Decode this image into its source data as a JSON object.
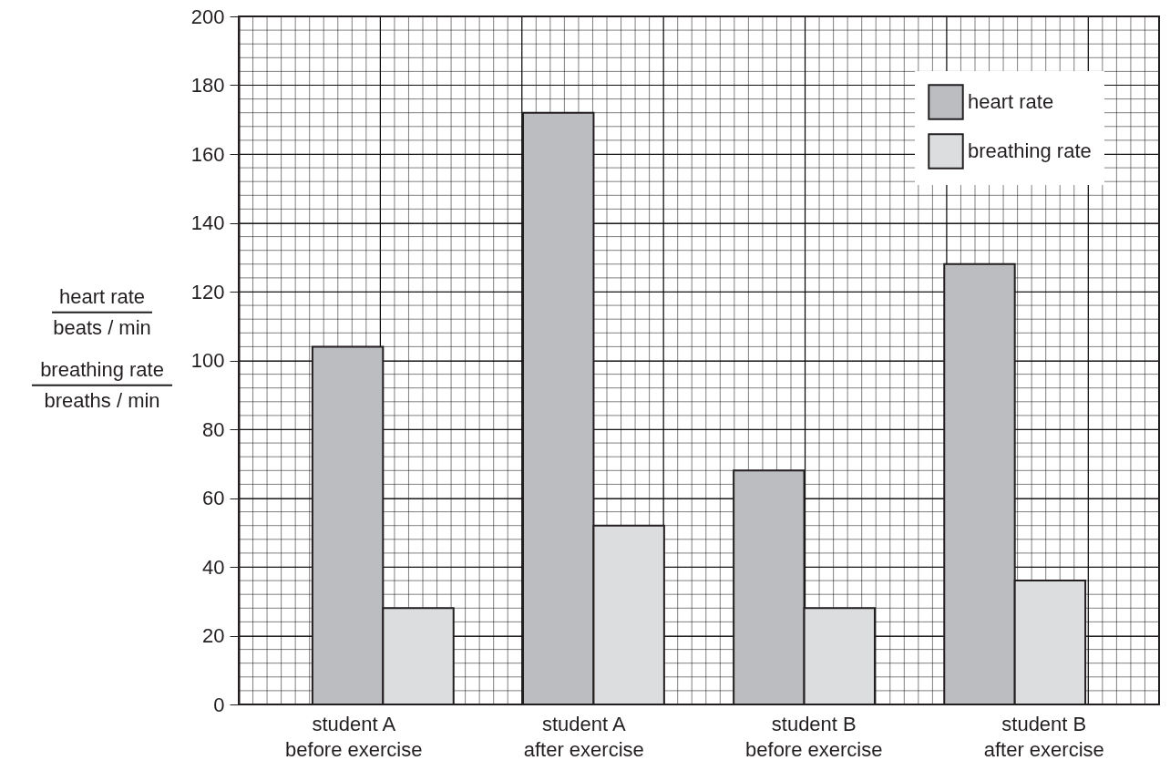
{
  "chart_data": {
    "type": "bar",
    "categories": [
      "student A\nbefore exercise",
      "student A\nafter exercise",
      "student B\nbefore exercise",
      "student B\nafter exercise"
    ],
    "ylabel": "heart rate\nbeats / min\nbreathing rate\nbreaths / min",
    "series": [
      {
        "name": "heart rate",
        "color": "#bcbdc0",
        "values": [
          104,
          172,
          68,
          128
        ]
      },
      {
        "name": "breathing rate",
        "color": "#dcddde",
        "values": [
          28,
          52,
          28,
          36
        ]
      }
    ],
    "ylim": [
      0,
      200
    ],
    "yticks": [
      0,
      20,
      40,
      60,
      80,
      100,
      120,
      140,
      160,
      180,
      200
    ],
    "grid": true,
    "legend": "top right"
  }
}
